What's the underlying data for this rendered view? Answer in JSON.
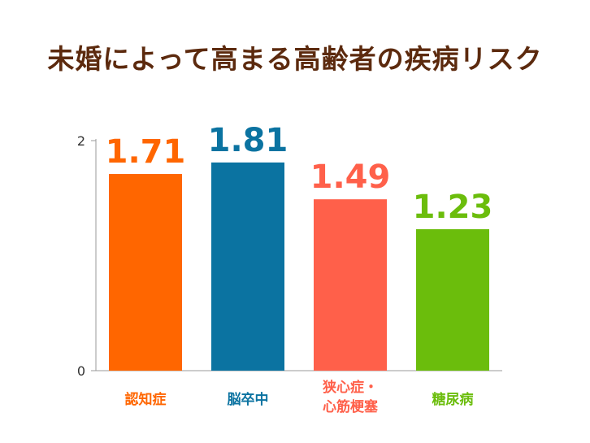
{
  "chart_data": {
    "type": "bar",
    "title": "未婚によって高まる高齢者の疾病リスク",
    "categories": [
      [
        "認知症"
      ],
      [
        "脳卒中"
      ],
      [
        "狭心症・",
        "心筋梗塞"
      ],
      [
        "糖尿病"
      ]
    ],
    "values": [
      1.71,
      1.81,
      1.49,
      1.23
    ],
    "value_labels": [
      "1.71",
      "1.81",
      "1.49",
      "1.23"
    ],
    "colors": [
      "#ff6600",
      "#0b73a1",
      "#ff604a",
      "#6bbd0c"
    ],
    "ylim": [
      0,
      2
    ],
    "yticks": [
      0,
      2
    ],
    "xlabel": "",
    "ylabel": "",
    "grid": false,
    "legend": "none"
  }
}
